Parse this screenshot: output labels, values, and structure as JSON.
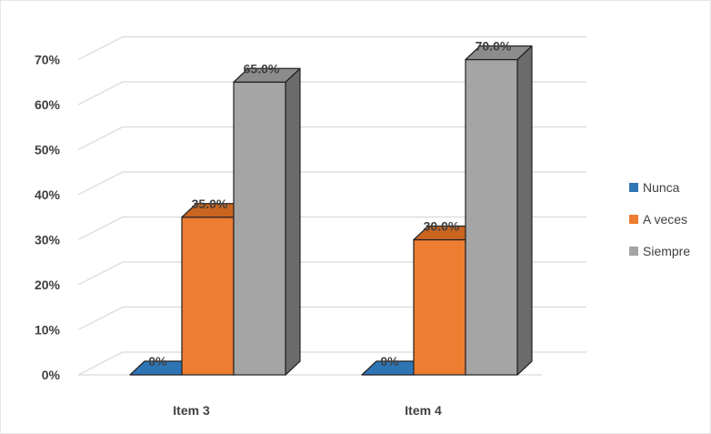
{
  "chart_data": {
    "type": "bar",
    "style": "3d-clustered-column",
    "categories": [
      "Item 3",
      "Item 4"
    ],
    "series": [
      {
        "name": "Nunca",
        "values": [
          0,
          0
        ],
        "labels": [
          "0%",
          "0%"
        ],
        "color": "#2E75B6",
        "side": "#1F4E79",
        "top": "#4A8ACB"
      },
      {
        "name": "A veces",
        "values": [
          35.0,
          30.0
        ],
        "labels": [
          "35.0%",
          "30.0%"
        ],
        "color": "#ED7D31",
        "side": "#B85A1B",
        "top": "#C9651F"
      },
      {
        "name": "Siempre",
        "values": [
          65.0,
          70.0
        ],
        "labels": [
          "65.0%",
          "70.0%"
        ],
        "color": "#A5A5A5",
        "side": "#6B6B6B",
        "top": "#8C8C8C"
      }
    ],
    "ylim": [
      0,
      70
    ],
    "yticks": [
      "0%",
      "10%",
      "20%",
      "30%",
      "40%",
      "50%",
      "60%",
      "70%"
    ],
    "ytick_values": [
      0,
      10,
      20,
      30,
      40,
      50,
      60,
      70
    ],
    "grid": true,
    "legend": "right",
    "title": "",
    "xlabel": "",
    "ylabel": ""
  }
}
